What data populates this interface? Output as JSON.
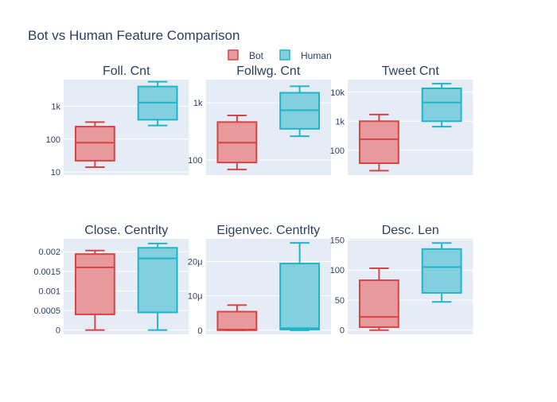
{
  "title": "Bot vs Human Feature Comparison",
  "colors": {
    "bot_line": "#d64545",
    "bot_fill": "#e8999c",
    "human_line": "#1fb5c9",
    "human_fill": "#82d0df",
    "panel_bg": "#e5ecf6",
    "grid": "#ffffff",
    "text": "#2a3f5f"
  },
  "legend": {
    "placement": "top-center",
    "items": [
      {
        "name": "Bot"
      },
      {
        "name": "Human"
      }
    ]
  },
  "chart_data": [
    {
      "type": "box",
      "title": "Foll. Cnt",
      "yscale": "log",
      "ylim": [
        8,
        6500
      ],
      "ticks": [
        {
          "v": 10,
          "label": "10"
        },
        {
          "v": 100,
          "label": "100"
        },
        {
          "v": 1000,
          "label": "1k"
        }
      ],
      "series": [
        {
          "name": "Bot",
          "whisker_low": 14,
          "q1": 22,
          "median": 78,
          "q3": 240,
          "whisker_high": 330
        },
        {
          "name": "Human",
          "whisker_low": 260,
          "q1": 390,
          "median": 1300,
          "q3": 4000,
          "whisker_high": 5600
        }
      ]
    },
    {
      "type": "box",
      "title": "Follwg. Cnt",
      "yscale": "log",
      "ylim": [
        54,
        2550
      ],
      "ticks": [
        {
          "v": 100,
          "label": "100"
        },
        {
          "v": 1000,
          "label": "1k"
        }
      ],
      "series": [
        {
          "name": "Bot",
          "whisker_low": 68,
          "q1": 90,
          "median": 200,
          "q3": 460,
          "whisker_high": 600
        },
        {
          "name": "Human",
          "whisker_low": 260,
          "q1": 350,
          "median": 740,
          "q3": 1500,
          "whisker_high": 1950
        }
      ]
    },
    {
      "type": "box",
      "title": "Tweet Cnt",
      "yscale": "log",
      "ylim": [
        14,
        27000
      ],
      "ticks": [
        {
          "v": 100,
          "label": "100"
        },
        {
          "v": 1000,
          "label": "1k"
        },
        {
          "v": 10000,
          "label": "10k"
        }
      ],
      "series": [
        {
          "name": "Bot",
          "whisker_low": 20,
          "q1": 36,
          "median": 240,
          "q3": 1000,
          "whisker_high": 1700
        },
        {
          "name": "Human",
          "whisker_low": 650,
          "q1": 1000,
          "median": 4400,
          "q3": 13500,
          "whisker_high": 19500
        }
      ]
    },
    {
      "type": "box",
      "title": "Close. Centrlty",
      "yscale": "linear",
      "ylim": [
        -0.00011,
        0.00233
      ],
      "ticks": [
        {
          "v": 0,
          "label": "0"
        },
        {
          "v": 0.0005,
          "label": "0.0005"
        },
        {
          "v": 0.001,
          "label": "0.001"
        },
        {
          "v": 0.0015,
          "label": "0.0015"
        },
        {
          "v": 0.002,
          "label": "0.002"
        }
      ],
      "series": [
        {
          "name": "Bot",
          "whisker_low": 0,
          "q1": 0.0004,
          "median": 0.0016,
          "q3": 0.00194,
          "whisker_high": 0.00203
        },
        {
          "name": "Human",
          "whisker_low": 0,
          "q1": 0.00045,
          "median": 0.00183,
          "q3": 0.0021,
          "whisker_high": 0.00221
        }
      ]
    },
    {
      "type": "box",
      "title": "Eigenvec. Centrlty",
      "yscale": "linear",
      "ylim": [
        -1.2e-06,
        2.66e-05
      ],
      "ticks": [
        {
          "v": 0,
          "label": "0"
        },
        {
          "v": 1e-05,
          "label": "10μ"
        },
        {
          "v": 2e-05,
          "label": "20μ"
        }
      ],
      "series": [
        {
          "name": "Bot",
          "whisker_low": 0,
          "q1": 0,
          "median": 2e-07,
          "q3": 5.4e-06,
          "whisker_high": 7.3e-06
        },
        {
          "name": "Human",
          "whisker_low": 0,
          "q1": 2e-07,
          "median": 6e-07,
          "q3": 1.94e-05,
          "whisker_high": 2.54e-05
        }
      ]
    },
    {
      "type": "box",
      "title": "Desc. Len",
      "yscale": "linear",
      "ylim": [
        -7,
        152
      ],
      "ticks": [
        {
          "v": 0,
          "label": "0"
        },
        {
          "v": 50,
          "label": "50"
        },
        {
          "v": 100,
          "label": "100"
        },
        {
          "v": 150,
          "label": "150"
        }
      ],
      "series": [
        {
          "name": "Bot",
          "whisker_low": 0,
          "q1": 5,
          "median": 22,
          "q3": 83,
          "whisker_high": 103
        },
        {
          "name": "Human",
          "whisker_low": 47,
          "q1": 62,
          "median": 105,
          "q3": 135,
          "whisker_high": 145
        }
      ]
    }
  ]
}
